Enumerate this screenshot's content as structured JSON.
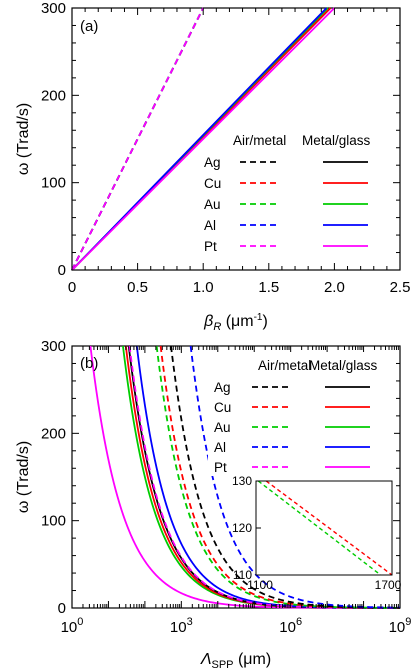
{
  "chart_data": [
    {
      "panel_label": "(a)",
      "type": "line",
      "xlabel_symbol": "β",
      "xlabel_subscript": "R",
      "xlabel_unit": " (μm",
      "xlabel_unit_exp": "-1",
      "xlabel_unit_close": ")",
      "ylabel": "ω (Trad/s)",
      "xlim": [
        0,
        2.5
      ],
      "ylim": [
        0,
        300
      ],
      "x_ticks": [
        0,
        0.5,
        1.0,
        1.5,
        2.0,
        2.5
      ],
      "x_tick_labels": [
        "0",
        "0.5",
        "1.0",
        "1.5",
        "2.0",
        "2.5"
      ],
      "y_ticks": [
        0,
        100,
        200,
        300
      ],
      "y_tick_labels": [
        "0",
        "100",
        "200",
        "300"
      ],
      "legend": {
        "placement": "lower-right",
        "header_dashed": "Air/metal",
        "header_solid": "Metal/glass",
        "entries": [
          "Ag",
          "Cu",
          "Au",
          "Al",
          "Pt"
        ]
      },
      "series": [
        {
          "name": "Ag",
          "interface": "Air/metal",
          "dash": true,
          "color": "#000000",
          "x": [
            0,
            1.0
          ],
          "y": [
            0,
            300
          ]
        },
        {
          "name": "Cu",
          "interface": "Air/metal",
          "dash": true,
          "color": "#ff0000",
          "x": [
            0,
            1.0
          ],
          "y": [
            0,
            300
          ]
        },
        {
          "name": "Au",
          "interface": "Air/metal",
          "dash": true,
          "color": "#00cc00",
          "x": [
            0,
            1.0
          ],
          "y": [
            0,
            300
          ]
        },
        {
          "name": "Al",
          "interface": "Air/metal",
          "dash": true,
          "color": "#0000ff",
          "x": [
            0,
            1.0
          ],
          "y": [
            0,
            300
          ]
        },
        {
          "name": "Pt",
          "interface": "Air/metal",
          "dash": true,
          "color": "#ff00ff",
          "x": [
            0,
            1.0
          ],
          "y": [
            0,
            300
          ]
        },
        {
          "name": "Ag",
          "interface": "Metal/glass",
          "dash": false,
          "color": "#000000",
          "x": [
            0,
            1.97
          ],
          "y": [
            0,
            300
          ]
        },
        {
          "name": "Cu",
          "interface": "Metal/glass",
          "dash": false,
          "color": "#ff0000",
          "x": [
            0,
            1.97
          ],
          "y": [
            0,
            300
          ]
        },
        {
          "name": "Au",
          "interface": "Metal/glass",
          "dash": false,
          "color": "#00cc00",
          "x": [
            0,
            1.95
          ],
          "y": [
            0,
            300
          ]
        },
        {
          "name": "Al",
          "interface": "Metal/glass",
          "dash": false,
          "color": "#0000ff",
          "x": [
            0,
            1.94
          ],
          "y": [
            0,
            300
          ]
        },
        {
          "name": "Pt",
          "interface": "Metal/glass",
          "dash": false,
          "color": "#ff00ff",
          "x": [
            0,
            2.0
          ],
          "y": [
            0,
            300
          ]
        }
      ]
    },
    {
      "panel_label": "(b)",
      "type": "line",
      "xlabel_symbol": "Λ",
      "xlabel_subscript": "SPP",
      "xlabel_unit": " (μm)",
      "ylabel": "ω (Trad/s)",
      "x_scale": "log",
      "xlim": [
        1,
        1000000000
      ],
      "ylim": [
        0,
        300
      ],
      "x_ticks": [
        1,
        1000,
        1000000,
        1000000000
      ],
      "x_tick_base": "10",
      "x_tick_exps": [
        "0",
        "3",
        "6",
        "9"
      ],
      "y_ticks": [
        0,
        100,
        200,
        300
      ],
      "y_tick_labels": [
        "0",
        "100",
        "200",
        "300"
      ],
      "legend": {
        "placement": "upper-right",
        "header_dashed": "Air/metal",
        "header_solid": "Metal/glass",
        "entries": [
          "Ag",
          "Cu",
          "Au",
          "Al",
          "Pt"
        ]
      },
      "model": "omega = A * Lambda^(-0.5)",
      "series": [
        {
          "name": "Pt",
          "interface": "Metal/glass",
          "dash": false,
          "color": "#ff00ff",
          "x300": 3.2
        },
        {
          "name": "Au",
          "interface": "Metal/glass",
          "dash": false,
          "color": "#00cc00",
          "x300": 25
        },
        {
          "name": "Cu",
          "interface": "Metal/glass",
          "dash": false,
          "color": "#ff0000",
          "x300": 30
        },
        {
          "name": "Ag",
          "interface": "Metal/glass",
          "dash": false,
          "color": "#000000",
          "x300": 36
        },
        {
          "name": "Al",
          "interface": "Metal/glass",
          "dash": false,
          "color": "#0000ff",
          "x300": 60
        },
        {
          "name": "Pt",
          "interface": "Air/metal",
          "dash": true,
          "color": "#ff00ff",
          "x300": 38
        },
        {
          "name": "Au",
          "interface": "Air/metal",
          "dash": true,
          "color": "#00cc00",
          "x300": 210
        },
        {
          "name": "Cu",
          "interface": "Air/metal",
          "dash": true,
          "color": "#ff0000",
          "x300": 270
        },
        {
          "name": "Ag",
          "interface": "Air/metal",
          "dash": true,
          "color": "#000000",
          "x300": 520
        },
        {
          "name": "Al",
          "interface": "Air/metal",
          "dash": true,
          "color": "#0000ff",
          "x300": 1800
        }
      ],
      "inset": {
        "xlim": [
          1100,
          1700
        ],
        "ylim": [
          110,
          130
        ],
        "x_tick_labels": [
          "1100",
          "1700"
        ],
        "y_ticks": [
          110,
          120,
          130
        ],
        "y_tick_labels": [
          "110",
          "120",
          "130"
        ],
        "series": [
          {
            "name": "Cu",
            "interface": "Air/metal",
            "dash": true,
            "color": "#ff0000",
            "x": [
              1145,
              1700
            ],
            "y": [
              130,
              110
            ]
          },
          {
            "name": "Au",
            "interface": "Air/metal",
            "dash": true,
            "color": "#00cc00",
            "x": [
              1110,
              1650
            ],
            "y": [
              130,
              110
            ]
          }
        ]
      }
    }
  ]
}
